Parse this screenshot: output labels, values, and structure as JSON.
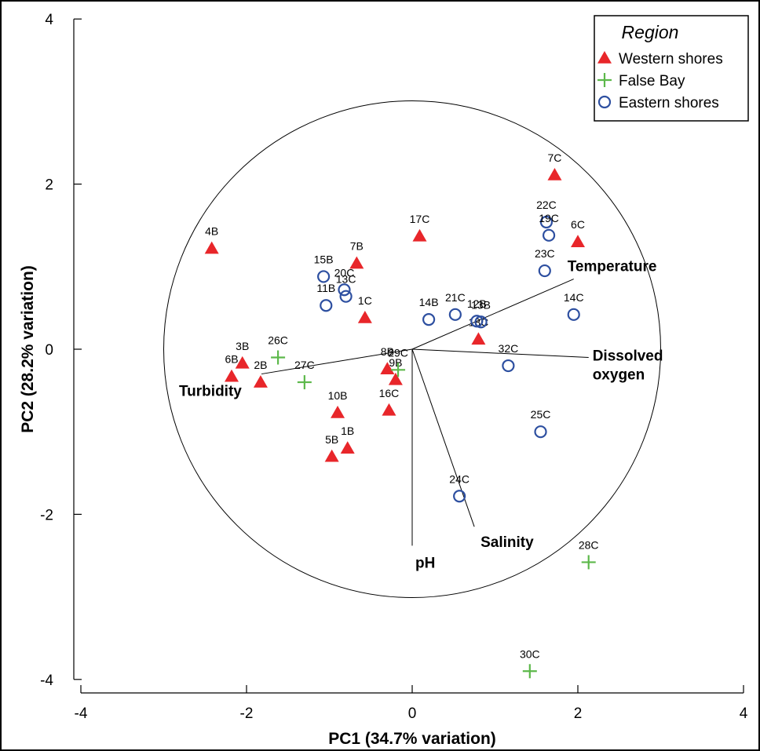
{
  "chart_data": {
    "type": "scatter",
    "xlabel": "PC1 (34.7% variation)",
    "ylabel": "PC2 (28.2% variation)",
    "xlim": [
      -4,
      4
    ],
    "ylim": [
      -4,
      4
    ],
    "xticks": [
      "-4",
      "-2",
      "0",
      "2",
      "4"
    ],
    "yticks": [
      "4",
      "2",
      "0",
      "-2",
      "-4"
    ],
    "legend": {
      "title": "Region",
      "position": "top-right",
      "entries": [
        "Western shores",
        "False Bay",
        "Eastern shores"
      ]
    },
    "colors": {
      "Western shores": "#e8262a",
      "False Bay": "#5cb84a",
      "Eastern shores": "#2d4fa0"
    },
    "series": [
      {
        "name": "Western shores",
        "marker": "triangle",
        "points": [
          {
            "label": "4B",
            "x": -2.42,
            "y": 1.22
          },
          {
            "label": "7B",
            "x": -0.67,
            "y": 1.04
          },
          {
            "label": "17C",
            "x": 0.09,
            "y": 1.37
          },
          {
            "label": "7C",
            "x": 1.72,
            "y": 2.11
          },
          {
            "label": "6C",
            "x": 2.0,
            "y": 1.3
          },
          {
            "label": "1C",
            "x": -0.57,
            "y": 0.38
          },
          {
            "label": "18C",
            "x": 0.8,
            "y": 0.12
          },
          {
            "label": "3B",
            "x": -2.05,
            "y": -0.17
          },
          {
            "label": "6B",
            "x": -2.18,
            "y": -0.33
          },
          {
            "label": "2B",
            "x": -1.83,
            "y": -0.4
          },
          {
            "label": "8B",
            "x": -0.3,
            "y": -0.24
          },
          {
            "label": "9B",
            "x": -0.2,
            "y": -0.37
          },
          {
            "label": "10B",
            "x": -0.9,
            "y": -0.77
          },
          {
            "label": "16C",
            "x": -0.28,
            "y": -0.74
          },
          {
            "label": "1B",
            "x": -0.78,
            "y": -1.2
          },
          {
            "label": "5B",
            "x": -0.97,
            "y": -1.3
          }
        ]
      },
      {
        "name": "False Bay",
        "marker": "cross",
        "points": [
          {
            "label": "26C",
            "x": -1.62,
            "y": -0.1
          },
          {
            "label": "27C",
            "x": -1.3,
            "y": -0.4
          },
          {
            "label": "29C",
            "x": -0.17,
            "y": -0.25
          },
          {
            "label": "28C",
            "x": 2.13,
            "y": -2.58
          },
          {
            "label": "30C",
            "x": 1.42,
            "y": -3.9
          }
        ]
      },
      {
        "name": "Eastern shores",
        "marker": "circle",
        "points": [
          {
            "label": "15B",
            "x": -1.07,
            "y": 0.88
          },
          {
            "label": "20C",
            "x": -0.82,
            "y": 0.72
          },
          {
            "label": "13C",
            "x": -0.8,
            "y": 0.64
          },
          {
            "label": "11B",
            "x": -1.04,
            "y": 0.53
          },
          {
            "label": "14B",
            "x": 0.2,
            "y": 0.36
          },
          {
            "label": "21C",
            "x": 0.52,
            "y": 0.42
          },
          {
            "label": "12B",
            "x": 0.78,
            "y": 0.34
          },
          {
            "label": "13B",
            "x": 0.83,
            "y": 0.33
          },
          {
            "label": "22C",
            "x": 1.62,
            "y": 1.54
          },
          {
            "label": "19C",
            "x": 1.65,
            "y": 1.38
          },
          {
            "label": "23C",
            "x": 1.6,
            "y": 0.95
          },
          {
            "label": "14C",
            "x": 1.95,
            "y": 0.42
          },
          {
            "label": "32C",
            "x": 1.16,
            "y": -0.2
          },
          {
            "label": "25C",
            "x": 1.55,
            "y": -1.0
          },
          {
            "label": "24C",
            "x": 0.57,
            "y": -1.78
          }
        ]
      }
    ],
    "vectors": [
      {
        "label": "Temperature",
        "x": 1.95,
        "y": 0.85
      },
      {
        "label": "Dissolved oxygen",
        "x": 2.13,
        "y": -0.1
      },
      {
        "label": "Turbidity",
        "x": -1.82,
        "y": -0.3
      },
      {
        "label": "pH",
        "x": 0.0,
        "y": -2.38
      },
      {
        "label": "Salinity",
        "x": 0.75,
        "y": -2.15
      }
    ],
    "circle": {
      "center": [
        0,
        0
      ],
      "radius": 3.0
    }
  }
}
